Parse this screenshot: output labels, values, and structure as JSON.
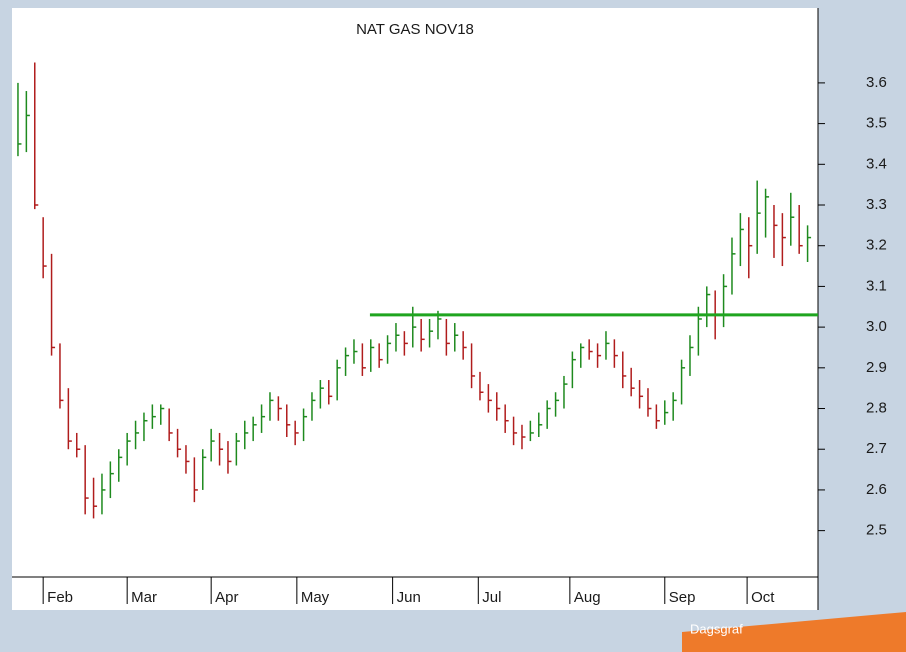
{
  "chart_data": {
    "type": "hlc",
    "title": "NAT GAS NOV18",
    "badge": "Dagsgraf",
    "x": [
      0,
      1,
      2,
      3,
      4,
      5,
      6,
      7,
      8,
      9,
      10,
      11,
      12,
      13,
      14,
      15,
      16,
      17,
      18,
      19,
      20,
      21,
      22,
      23,
      24,
      25,
      26,
      27,
      28,
      29,
      30,
      31,
      32,
      33,
      34,
      35,
      36,
      37,
      38,
      39,
      40,
      41,
      42,
      43,
      44,
      45,
      46,
      47,
      48,
      49,
      50,
      51,
      52,
      53,
      54,
      55,
      56,
      57,
      58,
      59,
      60,
      61,
      62,
      63,
      64,
      65,
      66,
      67,
      68,
      69,
      70,
      71,
      72,
      73,
      74,
      75,
      76,
      77,
      78,
      79,
      80,
      81,
      82,
      83,
      84,
      85,
      86,
      87,
      88,
      89,
      90,
      91,
      92,
      93,
      94
    ],
    "high": [
      3.6,
      3.58,
      3.65,
      3.27,
      3.18,
      2.96,
      2.85,
      2.74,
      2.71,
      2.63,
      2.64,
      2.67,
      2.7,
      2.74,
      2.77,
      2.79,
      2.81,
      2.81,
      2.8,
      2.75,
      2.71,
      2.68,
      2.7,
      2.75,
      2.74,
      2.72,
      2.74,
      2.77,
      2.78,
      2.81,
      2.84,
      2.83,
      2.81,
      2.77,
      2.8,
      2.84,
      2.87,
      2.87,
      2.92,
      2.95,
      2.97,
      2.96,
      2.97,
      2.96,
      2.98,
      3.01,
      2.99,
      3.05,
      3.02,
      3.02,
      3.04,
      3.02,
      3.01,
      2.99,
      2.96,
      2.89,
      2.86,
      2.84,
      2.81,
      2.78,
      2.76,
      2.77,
      2.79,
      2.82,
      2.84,
      2.88,
      2.94,
      2.96,
      2.97,
      2.96,
      2.99,
      2.97,
      2.94,
      2.9,
      2.87,
      2.85,
      2.81,
      2.82,
      2.84,
      2.92,
      2.98,
      3.05,
      3.1,
      3.09,
      3.13,
      3.22,
      3.28,
      3.27,
      3.36,
      3.34,
      3.3,
      3.28,
      3.33,
      3.3,
      3.25
    ],
    "low": [
      3.42,
      3.43,
      3.29,
      3.12,
      2.93,
      2.8,
      2.7,
      2.68,
      2.54,
      2.53,
      2.54,
      2.58,
      2.62,
      2.66,
      2.7,
      2.72,
      2.75,
      2.76,
      2.72,
      2.68,
      2.64,
      2.57,
      2.6,
      2.67,
      2.66,
      2.64,
      2.66,
      2.7,
      2.72,
      2.74,
      2.77,
      2.77,
      2.73,
      2.71,
      2.72,
      2.77,
      2.8,
      2.81,
      2.82,
      2.88,
      2.91,
      2.88,
      2.89,
      2.9,
      2.91,
      2.94,
      2.93,
      2.95,
      2.94,
      2.95,
      2.97,
      2.93,
      2.94,
      2.92,
      2.85,
      2.82,
      2.79,
      2.77,
      2.74,
      2.71,
      2.7,
      2.72,
      2.73,
      2.75,
      2.78,
      2.8,
      2.85,
      2.9,
      2.92,
      2.9,
      2.92,
      2.9,
      2.85,
      2.83,
      2.8,
      2.78,
      2.75,
      2.76,
      2.77,
      2.81,
      2.88,
      2.93,
      3.0,
      2.97,
      3.0,
      3.08,
      3.15,
      3.12,
      3.18,
      3.22,
      3.17,
      3.15,
      3.2,
      3.18,
      3.16
    ],
    "close": [
      3.45,
      3.52,
      3.3,
      3.15,
      2.95,
      2.82,
      2.72,
      2.7,
      2.58,
      2.56,
      2.6,
      2.64,
      2.68,
      2.72,
      2.74,
      2.77,
      2.78,
      2.8,
      2.74,
      2.7,
      2.67,
      2.6,
      2.68,
      2.72,
      2.7,
      2.67,
      2.72,
      2.74,
      2.76,
      2.78,
      2.82,
      2.8,
      2.76,
      2.74,
      2.78,
      2.82,
      2.85,
      2.83,
      2.9,
      2.93,
      2.94,
      2.9,
      2.95,
      2.92,
      2.96,
      2.98,
      2.96,
      3.0,
      2.97,
      2.99,
      3.02,
      2.96,
      2.98,
      2.95,
      2.88,
      2.84,
      2.82,
      2.8,
      2.77,
      2.74,
      2.73,
      2.74,
      2.76,
      2.8,
      2.82,
      2.86,
      2.92,
      2.95,
      2.94,
      2.93,
      2.96,
      2.93,
      2.88,
      2.85,
      2.83,
      2.8,
      2.77,
      2.79,
      2.82,
      2.9,
      2.95,
      3.02,
      3.08,
      3.03,
      3.1,
      3.18,
      3.24,
      3.2,
      3.28,
      3.32,
      3.25,
      3.22,
      3.27,
      3.2,
      3.22
    ],
    "up_color": "#1e8a1e",
    "down_color": "#b01c1c",
    "xlim": [
      -0.71,
      95.24
    ],
    "xticks": [
      {
        "value": 3,
        "label": "Feb"
      },
      {
        "value": 13,
        "label": "Mar"
      },
      {
        "value": 23,
        "label": "Apr"
      },
      {
        "value": 33.2,
        "label": "May"
      },
      {
        "value": 44.6,
        "label": "Jun"
      },
      {
        "value": 54.8,
        "label": "Jul"
      },
      {
        "value": 65.7,
        "label": "Aug"
      },
      {
        "value": 77,
        "label": "Sep"
      },
      {
        "value": 86.8,
        "label": "Oct"
      }
    ],
    "ylim": [
      2.305,
      3.784
    ],
    "yticks": [
      3.6,
      3.5,
      3.4,
      3.3,
      3.2,
      3.1,
      {
        "value": 3,
        "label": "3.0"
      },
      2.9,
      2.8,
      2.7,
      2.6,
      2.5
    ],
    "hline_value": 3.03,
    "hline_start": 41.9,
    "hline_color": "#1fa51f"
  }
}
